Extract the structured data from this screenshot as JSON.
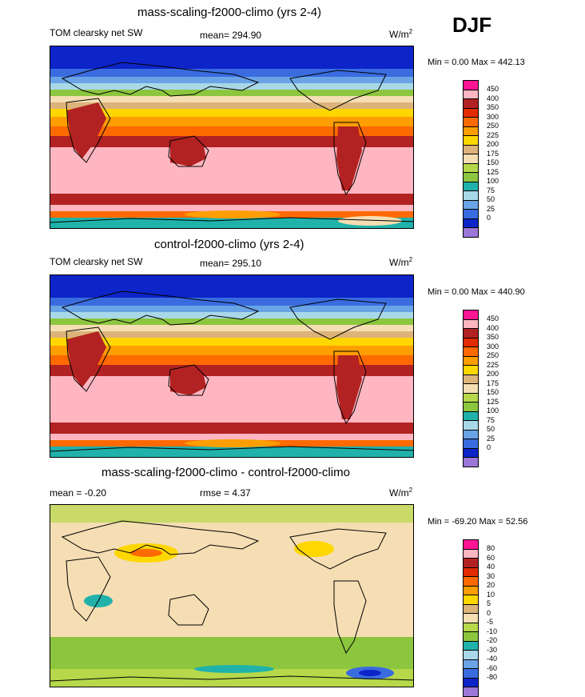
{
  "season": "DJF",
  "colors": {
    "pal_abs": [
      "#9b78d7",
      "#0c24c8",
      "#3a6ce0",
      "#6aa4e6",
      "#a8d8e8",
      "#20b2aa",
      "#8cc63f",
      "#b6d84a",
      "#f5deb3",
      "#dcb37a",
      "#ffd700",
      "#ff9e00",
      "#ff6a00",
      "#e22b00",
      "#b22222",
      "#ffb6c1",
      "#ff1493"
    ],
    "pal_diff": [
      "#9b78d7",
      "#0c24c8",
      "#3a6ce0",
      "#6aa4e6",
      "#a8d8e8",
      "#20b2aa",
      "#8cc63f",
      "#b6d84a",
      "#f5deb3",
      "#dcb37a",
      "#ffd700",
      "#ff9e00",
      "#ff6a00",
      "#e22b00",
      "#b22222",
      "#ffb6c1",
      "#ff1493"
    ]
  },
  "panels": [
    {
      "title": "mass-scaling-f2000-climo (yrs 2-4)",
      "variable": "TOM clearsky net SW",
      "mean": "mean= 294.90",
      "units": "W/m",
      "units_sup": "2",
      "minmax": "Min =   0.00 Max = 442.13",
      "colorbar_labels": [
        "450",
        "400",
        "350",
        "300",
        "250",
        "225",
        "200",
        "175",
        "150",
        "125",
        "100",
        "75",
        "50",
        "25",
        "0"
      ]
    },
    {
      "title": "control-f2000-climo (yrs 2-4)",
      "variable": "TOM clearsky net SW",
      "mean": "mean= 295.10",
      "units": "W/m",
      "units_sup": "2",
      "minmax": "Min =   0.00 Max = 440.90",
      "colorbar_labels": [
        "450",
        "400",
        "350",
        "300",
        "250",
        "225",
        "200",
        "175",
        "150",
        "125",
        "100",
        "75",
        "50",
        "25",
        "0"
      ]
    },
    {
      "title": "mass-scaling-f2000-climo - control-f2000-climo",
      "variable": "mean =  -0.20",
      "mean": "rmse =   4.37",
      "units": "W/m",
      "units_sup": "2",
      "minmax": "Min = -69.20 Max =  52.56",
      "colorbar_labels": [
        "80",
        "60",
        "40",
        "30",
        "20",
        "10",
        "5",
        "0",
        "-5",
        "-10",
        "-20",
        "-30",
        "-40",
        "-60",
        "-80"
      ]
    }
  ]
}
